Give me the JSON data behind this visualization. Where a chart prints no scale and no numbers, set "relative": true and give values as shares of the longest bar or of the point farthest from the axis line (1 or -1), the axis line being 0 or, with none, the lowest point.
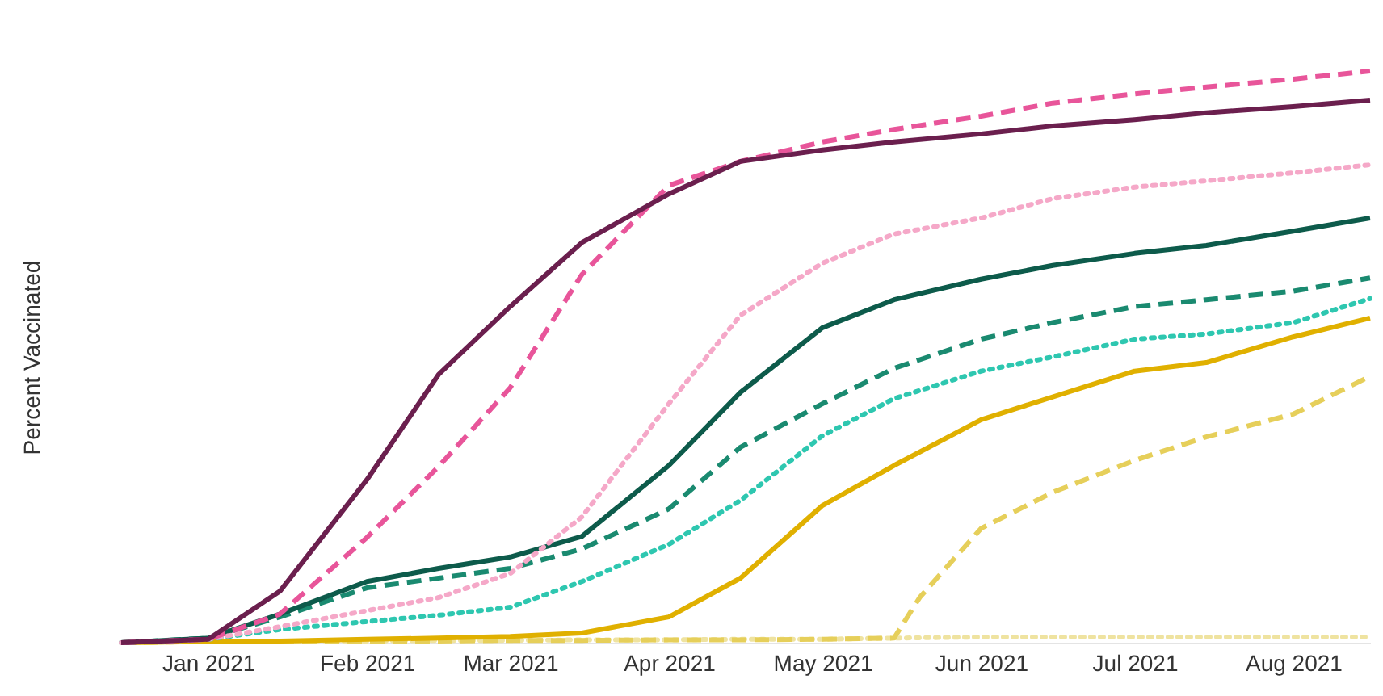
{
  "chart_data": {
    "type": "line",
    "ylabel": "Percent Vaccinated",
    "relative": true,
    "tick_labels": "x",
    "x": [
      "2020-12-15",
      "2021-01-01",
      "2021-01-15",
      "2021-02-01",
      "2021-02-15",
      "2021-03-01",
      "2021-03-15",
      "2021-04-01",
      "2021-04-15",
      "2021-05-01",
      "2021-05-15",
      "2021-06-01",
      "2021-06-15",
      "2021-07-01",
      "2021-07-15",
      "2021-08-01",
      "2021-08-16"
    ],
    "xlim": [
      "2020-12-15",
      "2021-08-16"
    ],
    "xticks": [
      {
        "value": "2021-01-01",
        "label": "Jan 2021"
      },
      {
        "value": "2021-02-01",
        "label": "Feb 2021"
      },
      {
        "value": "2021-03-01",
        "label": "Mar 2021"
      },
      {
        "value": "2021-04-01",
        "label": "Apr 2021"
      },
      {
        "value": "2021-05-01",
        "label": "May 2021"
      },
      {
        "value": "2021-06-01",
        "label": "Jun 2021"
      },
      {
        "value": "2021-07-01",
        "label": "Jul 2021"
      },
      {
        "value": "2021-08-01",
        "label": "Aug 2021"
      }
    ],
    "series": [
      {
        "color": "#efe3a0",
        "line_style": "dotted",
        "values": [
          0,
          0.002,
          0.003,
          0.003,
          0.004,
          0.004,
          0.005,
          0.005,
          0.006,
          0.006,
          0.008,
          0.01,
          0.01,
          0.01,
          0.01,
          0.01,
          0.01
        ]
      },
      {
        "color": "#e6cf5a",
        "line_style": "dashed",
        "x": [
          "2020-12-15",
          "2021-01-01",
          "2021-01-15",
          "2021-02-01",
          "2021-02-15",
          "2021-03-01",
          "2021-03-15",
          "2021-04-01",
          "2021-04-15",
          "2021-05-01",
          "2021-05-15",
          "2021-05-20",
          "2021-06-01",
          "2021-06-15",
          "2021-07-01",
          "2021-07-15",
          "2021-08-01",
          "2021-08-16"
        ],
        "values": [
          0,
          0.002,
          0.002,
          0.003,
          0.003,
          0.004,
          0.004,
          0.005,
          0.005,
          0.006,
          0.008,
          0.079,
          0.2,
          0.263,
          0.319,
          0.36,
          0.4,
          0.466
        ]
      },
      {
        "color": "#e0b000",
        "line_style": "solid",
        "values": [
          0,
          0.002,
          0.003,
          0.006,
          0.008,
          0.011,
          0.017,
          0.045,
          0.113,
          0.24,
          0.31,
          0.39,
          0.43,
          0.475,
          0.49,
          0.535,
          0.568
        ]
      },
      {
        "color": "#2ec7b0",
        "line_style": "dotted",
        "values": [
          0,
          0.006,
          0.023,
          0.037,
          0.048,
          0.062,
          0.107,
          0.172,
          0.249,
          0.362,
          0.427,
          0.475,
          0.5,
          0.531,
          0.54,
          0.56,
          0.602
        ]
      },
      {
        "color": "#1a8a70",
        "line_style": "dashed",
        "values": [
          0,
          0.008,
          0.045,
          0.096,
          0.113,
          0.13,
          0.164,
          0.234,
          0.342,
          0.418,
          0.48,
          0.531,
          0.56,
          0.588,
          0.6,
          0.615,
          0.638
        ]
      },
      {
        "color": "#0d5b4b",
        "line_style": "solid",
        "values": [
          0,
          0.008,
          0.05,
          0.107,
          0.13,
          0.15,
          0.186,
          0.31,
          0.438,
          0.551,
          0.6,
          0.636,
          0.66,
          0.681,
          0.695,
          0.72,
          0.743
        ]
      },
      {
        "color": "#f5a8c8",
        "line_style": "dotted",
        "values": [
          0,
          0.006,
          0.028,
          0.056,
          0.079,
          0.121,
          0.22,
          0.418,
          0.573,
          0.664,
          0.715,
          0.743,
          0.777,
          0.797,
          0.808,
          0.822,
          0.836
        ]
      },
      {
        "color": "#e8559a",
        "line_style": "dashed",
        "values": [
          0,
          0.006,
          0.05,
          0.184,
          0.308,
          0.446,
          0.644,
          0.8,
          0.842,
          0.876,
          0.898,
          0.921,
          0.944,
          0.96,
          0.972,
          0.986,
          1
        ]
      },
      {
        "color": "#6b1f4e",
        "line_style": "solid",
        "values": [
          0,
          0.006,
          0.09,
          0.285,
          0.469,
          0.588,
          0.7,
          0.785,
          0.842,
          0.862,
          0.876,
          0.89,
          0.904,
          0.915,
          0.927,
          0.938,
          0.949
        ]
      }
    ]
  }
}
